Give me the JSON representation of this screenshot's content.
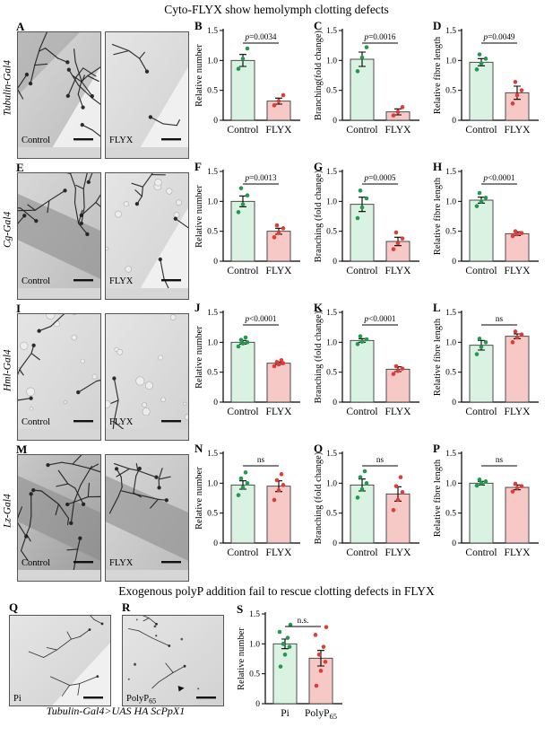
{
  "title": "Cyto-FLYX show hemolymph clotting defects",
  "section2": {
    "title": "Exogenous polyP addition fail to rescue clotting defects in FLYX",
    "caption": "Tubulin-Gal4>UAS HA ScPpX1"
  },
  "colors": {
    "control_fill": "#d9f2e1",
    "control_dot": "#219a4e",
    "flyx_fill": "#f7c9c6",
    "flyx_dot": "#e03c36",
    "axis": "#000000",
    "bar_edge": "#3a3a3a"
  },
  "axis": {
    "ylim": [
      0,
      1.5
    ],
    "yticks": [
      {
        "v": 0,
        "label": "0"
      },
      {
        "v": 0.5,
        "label": "0.5"
      },
      {
        "v": 1,
        "label": "1.0"
      },
      {
        "v": 1.5,
        "label": "1.5"
      }
    ]
  },
  "rows": [
    {
      "driver": "Tubulin-Gal4",
      "panel_letter": "A",
      "images": [
        {
          "label": "Control"
        },
        {
          "label": "FLYX"
        }
      ],
      "charts": [
        "B",
        "C",
        "D"
      ]
    },
    {
      "driver": "Cg-Gal4",
      "panel_letter": "E",
      "images": [
        {
          "label": "Control"
        },
        {
          "label": "FLYX"
        }
      ],
      "charts": [
        "F",
        "G",
        "H"
      ]
    },
    {
      "driver": "Hml-Gal4",
      "panel_letter": "I",
      "images": [
        {
          "label": "Control"
        },
        {
          "label": "FLYX"
        }
      ],
      "charts": [
        "J",
        "K",
        "L"
      ]
    },
    {
      "driver": "Lz-Gal4",
      "panel_letter": "M",
      "images": [
        {
          "label": "Control"
        },
        {
          "label": "FLYX"
        }
      ],
      "charts": [
        "N",
        "O",
        "P"
      ]
    }
  ],
  "bottom": {
    "panels": [
      {
        "letter": "Q",
        "label": "Pi"
      },
      {
        "letter": "R",
        "label": "PolyP",
        "label_sub": "65"
      }
    ],
    "chart_panel": "S"
  },
  "chart_data": [
    {
      "panel": "B",
      "type": "bar",
      "ylabel": "Relative number",
      "annotation": "p=0.0034",
      "categories": [
        "Control",
        "FLYX"
      ],
      "values": [
        1.0,
        0.32
      ],
      "errors": [
        0.1,
        0.05
      ],
      "points": [
        [
          0.86,
          1.03,
          1.2
        ],
        [
          0.25,
          0.32,
          0.42
        ]
      ],
      "ylim": [
        0,
        1.5
      ]
    },
    {
      "panel": "C",
      "type": "bar",
      "ylabel": "Branching(fold change)",
      "annotation": "p=0.0016",
      "categories": [
        "Control",
        "FLYX"
      ],
      "values": [
        1.02,
        0.14
      ],
      "errors": [
        0.12,
        0.05
      ],
      "points": [
        [
          0.82,
          1.05,
          1.22
        ],
        [
          0.08,
          0.14,
          0.22
        ]
      ],
      "ylim": [
        0,
        1.5
      ]
    },
    {
      "panel": "D",
      "type": "bar",
      "ylabel": "Relative fibre length",
      "annotation": "p=0.0049",
      "categories": [
        "Control",
        "FLYX"
      ],
      "values": [
        0.97,
        0.46
      ],
      "errors": [
        0.06,
        0.11
      ],
      "points": [
        [
          0.85,
          0.95,
          1.03,
          1.1
        ],
        [
          0.28,
          0.42,
          0.5,
          0.64
        ]
      ],
      "ylim": [
        0,
        1.5
      ]
    },
    {
      "panel": "F",
      "type": "bar",
      "ylabel": "Relative number",
      "annotation": "p=0.0013",
      "categories": [
        "Control",
        "FLYX"
      ],
      "values": [
        1.0,
        0.5
      ],
      "errors": [
        0.09,
        0.05
      ],
      "points": [
        [
          0.82,
          0.95,
          1.1,
          1.22
        ],
        [
          0.4,
          0.47,
          0.55,
          0.6
        ]
      ],
      "ylim": [
        0,
        1.5
      ]
    },
    {
      "panel": "G",
      "type": "bar",
      "ylabel": "Branching (fold change)",
      "annotation": "p=0.0005",
      "categories": [
        "Control",
        "FLYX"
      ],
      "values": [
        0.95,
        0.33
      ],
      "errors": [
        0.12,
        0.07
      ],
      "points": [
        [
          0.72,
          0.9,
          1.05,
          1.18
        ],
        [
          0.2,
          0.3,
          0.38,
          0.48
        ]
      ],
      "ylim": [
        0,
        1.5
      ]
    },
    {
      "panel": "H",
      "type": "bar",
      "ylabel": "Relative fibre length",
      "annotation": "p<0.0001",
      "categories": [
        "Control",
        "FLYX"
      ],
      "values": [
        1.02,
        0.46
      ],
      "errors": [
        0.05,
        0.03
      ],
      "points": [
        [
          0.92,
          1.0,
          1.06,
          1.14
        ],
        [
          0.42,
          0.45,
          0.47,
          0.5
        ]
      ],
      "ylim": [
        0,
        1.5
      ]
    },
    {
      "panel": "J",
      "type": "bar",
      "ylabel": "Relative number",
      "annotation": "p<0.0001",
      "categories": [
        "Control",
        "FLYX"
      ],
      "values": [
        1.0,
        0.65
      ],
      "errors": [
        0.03,
        0.02
      ],
      "points": [
        [
          0.93,
          0.98,
          1.0,
          1.04,
          1.08
        ],
        [
          0.6,
          0.63,
          0.65,
          0.67,
          0.7
        ]
      ],
      "ylim": [
        0,
        1.5
      ]
    },
    {
      "panel": "K",
      "type": "bar",
      "ylabel": "Branching (fold change)",
      "annotation": "p<0.0001",
      "categories": [
        "Control",
        "FLYX"
      ],
      "values": [
        1.03,
        0.55
      ],
      "errors": [
        0.03,
        0.04
      ],
      "points": [
        [
          0.97,
          1.01,
          1.05,
          1.1
        ],
        [
          0.47,
          0.52,
          0.56,
          0.6
        ]
      ],
      "ylim": [
        0,
        1.5
      ]
    },
    {
      "panel": "L",
      "type": "bar",
      "ylabel": "Relative fibre length",
      "annotation": "ns",
      "categories": [
        "Control",
        "FLYX"
      ],
      "values": [
        0.95,
        1.1
      ],
      "errors": [
        0.08,
        0.04
      ],
      "points": [
        [
          0.8,
          0.92,
          1.0,
          1.06
        ],
        [
          1.0,
          1.08,
          1.13,
          1.18
        ]
      ],
      "ylim": [
        0,
        1.5
      ]
    },
    {
      "panel": "N",
      "type": "bar",
      "ylabel": "Relative number",
      "annotation": "ns",
      "categories": [
        "Control",
        "FLYX"
      ],
      "values": [
        0.97,
        0.95
      ],
      "errors": [
        0.07,
        0.09
      ],
      "points": [
        [
          0.8,
          0.93,
          1.0,
          1.08,
          1.18
        ],
        [
          0.72,
          0.88,
          0.97,
          1.05,
          1.15
        ]
      ],
      "ylim": [
        0,
        1.5
      ]
    },
    {
      "panel": "O",
      "type": "bar",
      "ylabel": "Branching (fold change)",
      "annotation": "ns",
      "categories": [
        "Control",
        "FLYX"
      ],
      "values": [
        0.97,
        0.82
      ],
      "errors": [
        0.1,
        0.12
      ],
      "points": [
        [
          0.76,
          0.9,
          1.0,
          1.1,
          1.2
        ],
        [
          0.55,
          0.72,
          0.85,
          0.95,
          1.1
        ]
      ],
      "ylim": [
        0,
        1.5
      ]
    },
    {
      "panel": "P",
      "type": "bar",
      "ylabel": "Relative fibre length",
      "annotation": "ns",
      "categories": [
        "Control",
        "FLYX"
      ],
      "values": [
        1.0,
        0.93
      ],
      "errors": [
        0.03,
        0.04
      ],
      "points": [
        [
          0.96,
          1.0,
          1.03,
          1.06
        ],
        [
          0.86,
          0.92,
          0.95,
          0.99
        ]
      ],
      "ylim": [
        0,
        1.5
      ]
    },
    {
      "panel": "S",
      "type": "bar",
      "ylabel": "Relative number",
      "annotation": "n.s.",
      "categories": [
        "Pi",
        "PolyP65"
      ],
      "cat_rich": [
        [
          "Pi",
          ""
        ],
        [
          "PolyP",
          "65"
        ]
      ],
      "values": [
        1.0,
        0.76
      ],
      "errors": [
        0.08,
        0.13
      ],
      "points": [
        [
          0.62,
          0.82,
          0.95,
          1.0,
          1.1,
          1.2,
          1.32
        ],
        [
          0.3,
          0.55,
          0.7,
          0.82,
          0.95,
          1.15,
          1.28
        ]
      ],
      "ylim": [
        0,
        1.5
      ]
    }
  ]
}
